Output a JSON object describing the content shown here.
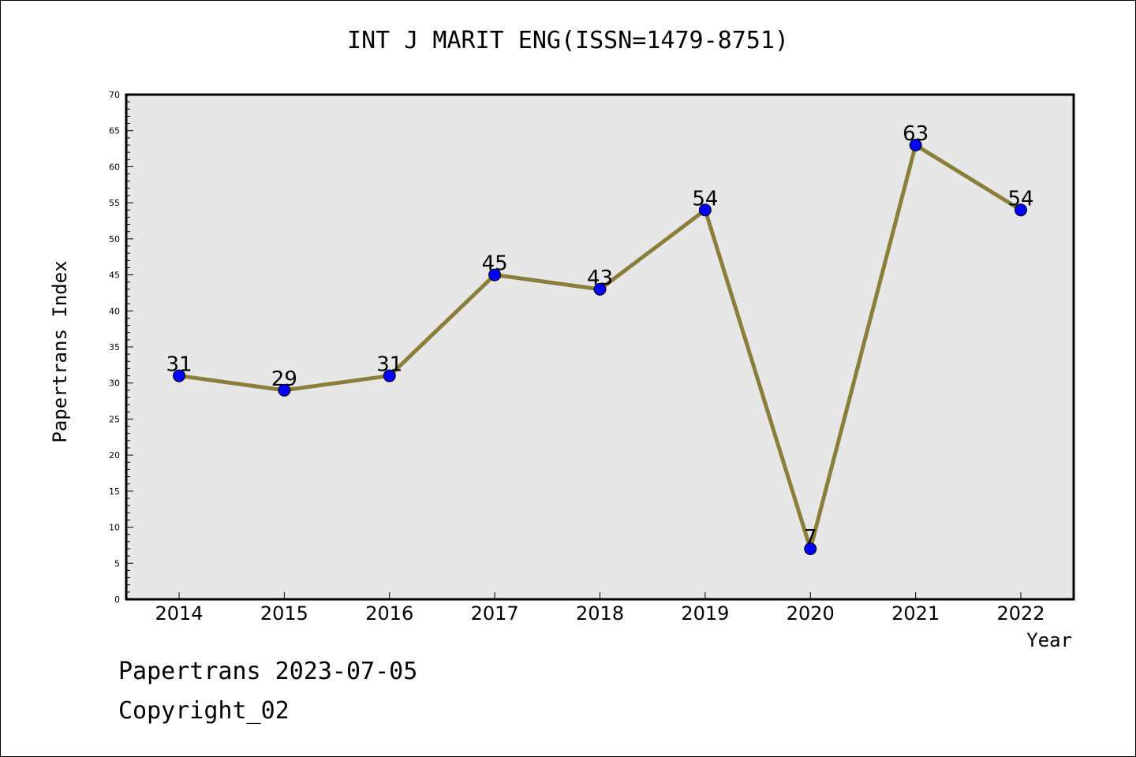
{
  "chart_data": {
    "type": "line",
    "title": "INT J MARIT ENG(ISSN=1479-8751)",
    "xlabel": "Year",
    "ylabel": "Papertrans Index",
    "categories": [
      "2014",
      "2015",
      "2016",
      "2017",
      "2018",
      "2019",
      "2020",
      "2021",
      "2022"
    ],
    "series": [
      {
        "values": [
          31,
          29,
          31,
          45,
          43,
          54,
          7,
          63,
          54
        ]
      }
    ],
    "ylim": [
      0,
      70
    ],
    "ytick_step": 5,
    "yticks": [
      "0",
      "5",
      "10",
      "15",
      "20",
      "25",
      "30",
      "35",
      "40",
      "45",
      "50",
      "55",
      "60",
      "65",
      "70"
    ],
    "line_color": "#8b7d3a",
    "marker_color": "#0000ff",
    "plot_background": "#e7e7e7",
    "grid": false,
    "legend": "none"
  },
  "footer": {
    "line1": "Papertrans 2023-07-05",
    "line2": "Copyright_02"
  }
}
